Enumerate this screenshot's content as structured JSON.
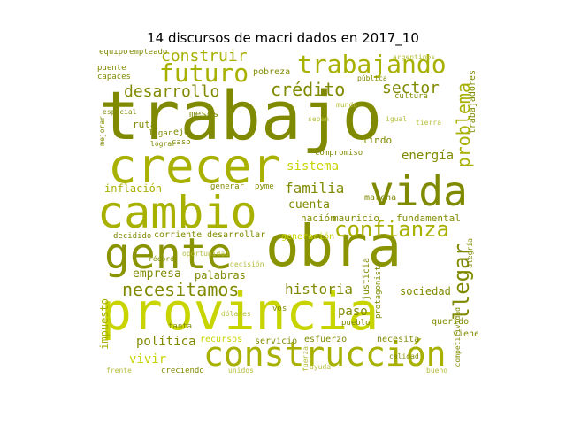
{
  "title": "14 discursos de macri dados en 2017_10",
  "colors": {
    "dark": "#808a00",
    "mid": "#a8b000",
    "bright": "#c8d400",
    "light": "#b5bd3a"
  },
  "words": [
    "trabajo",
    "provincia",
    "obra",
    "crecer",
    "cambio",
    "gente",
    "vida",
    "construcción",
    "trabajando",
    "futuro",
    "confianza",
    "necesitamos",
    "crédito",
    "desarrollo",
    "problema",
    "sector",
    "construir",
    "llegar",
    "historia",
    "familia",
    "sistema",
    "energía",
    "inflación",
    "cuenta",
    "nación",
    "mauricio",
    "fundamental",
    "empresa",
    "palabras",
    "política",
    "vivir",
    "paso",
    "sociedad",
    "pueblo",
    "esfuerzo",
    "servicio",
    "necesita",
    "querido",
    "creciendo",
    "impuesto",
    "trabajadores",
    "protagonista",
    "justicia",
    "competitividad",
    "generación",
    "corriente",
    "desarrollar",
    "decidido",
    "recursos",
    "tanta",
    "capaces",
    "puente",
    "equipo",
    "empleado",
    "pobreza",
    "meses",
    "ruta",
    "lugar",
    "eje",
    "caso",
    "marcha",
    "compromiso",
    "lindo",
    "cultura",
    "generar",
    "pyme",
    "viene",
    "calidad",
    "vos",
    "mejorar",
    "récord",
    "alegría",
    "lograr",
    "pública",
    "mundo",
    "igual",
    "sepan",
    "tierra",
    "oportunidad",
    "especial",
    "argentinos",
    "decisión",
    "fuerza",
    "dólares",
    "ayuda",
    "frente",
    "bueno",
    "unidos"
  ]
}
